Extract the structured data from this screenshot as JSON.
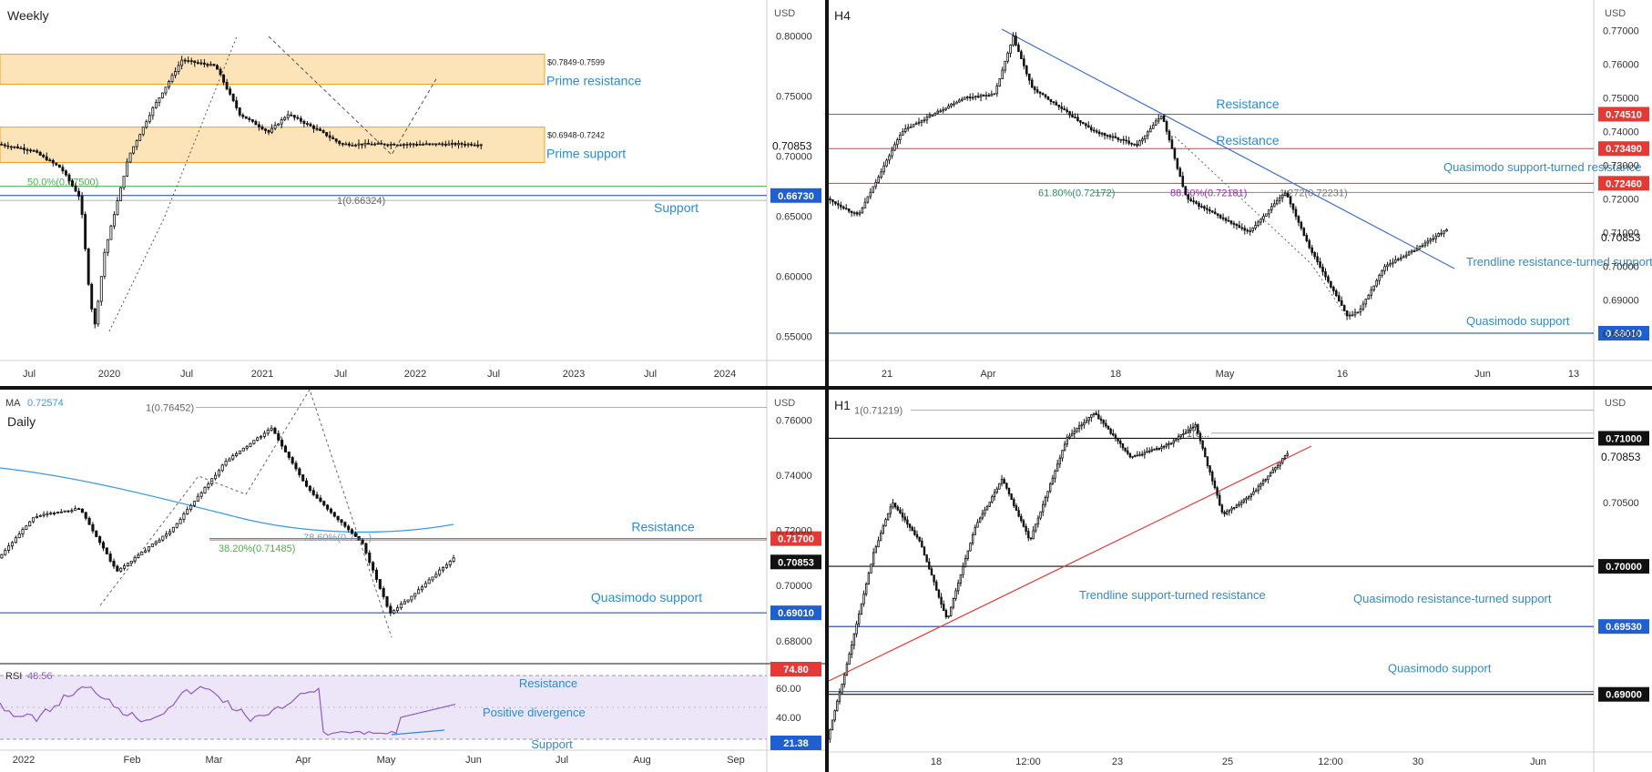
{
  "colors": {
    "blue_label": "#2e8bd0",
    "green_label": "#4caf50",
    "purple_label": "#9c27b0",
    "red": "#e53935",
    "black": "#111111",
    "zone_fill": "#fde3b8",
    "zone_stroke": "#f0a020",
    "ma_line": "#3b9be0",
    "rsi_line": "#8e5ac8",
    "rsi_band": "#ede6f8"
  },
  "chart_data": [
    {
      "id": "weekly",
      "type": "candlestick",
      "title": "Weekly",
      "currency": "USD",
      "price_axis": {
        "ticks": [
          "0.80000",
          "0.75000",
          "0.70000",
          "0.65000",
          "0.60000",
          "0.55000"
        ],
        "last_price": "0.70853"
      },
      "time_axis": [
        "Jul",
        "2020",
        "Jul",
        "2021",
        "Jul",
        "2022",
        "Jul",
        "2023",
        "Jul",
        "2024"
      ],
      "zones": [
        {
          "label": "0.7849-0.7599",
          "top": 0.7849,
          "bottom": 0.7599,
          "caption": "Prime resistance"
        },
        {
          "label": "0.6948-0.7242",
          "top": 0.7242,
          "bottom": 0.6948,
          "caption": "Prime support"
        }
      ],
      "lines": [
        {
          "label": "50.0%(0.67500)",
          "value": 0.675
        },
        {
          "label": "1(0.66324)",
          "value": 0.66324
        },
        {
          "label": "0.66730",
          "value": 0.6673,
          "caption": "Support"
        }
      ],
      "y_range": [
        0.53,
        0.83
      ]
    },
    {
      "id": "h4",
      "type": "candlestick",
      "title": "H4",
      "currency": "USD",
      "price_axis": {
        "ticks": [
          "0.77000",
          "0.76000",
          "0.75000",
          "0.74000",
          "0.73000",
          "0.72000",
          "0.71000",
          "0.70000",
          "0.69000",
          "0.68000"
        ],
        "last_price": "0.70853"
      },
      "time_axis": [
        "21",
        "Apr",
        "18",
        "May",
        "16",
        "Jun",
        "13"
      ],
      "lines": [
        {
          "label": "0.74510",
          "value": 0.7451,
          "caption": "Resistance"
        },
        {
          "label": "0.73490",
          "value": 0.7349,
          "caption": "Resistance"
        },
        {
          "label": "0.72460",
          "value": 0.7246,
          "caption": "Quasimodo support-turned resistance"
        },
        {
          "label": "0.68010",
          "value": 0.6801,
          "caption": "Quasimodo support"
        }
      ],
      "fibs": [
        {
          "label": "61.80%(0.72172)",
          "value": 0.72172
        },
        {
          "label": "88.60%(0.72181)",
          "value": 0.72181
        },
        {
          "label": "1.272(0.72231)",
          "value": 0.72231
        }
      ],
      "trendline_caption": "Trendline resistance-turned support",
      "y_range": [
        0.672,
        0.779
      ]
    },
    {
      "id": "daily",
      "type": "candlestick",
      "title": "Daily",
      "currency": "USD",
      "ma": {
        "label": "MA",
        "value": "0.72574"
      },
      "price_axis": {
        "ticks": [
          "0.76000",
          "0.74000",
          "0.72000",
          "0.70000",
          "0.68000"
        ],
        "last_price": "0.70853"
      },
      "time_axis": [
        "2022",
        "Feb",
        "Mar",
        "Apr",
        "May",
        "Jun",
        "Jul",
        "Aug",
        "Sep"
      ],
      "lines": [
        {
          "label": "0.71700",
          "value": 0.717,
          "caption": "Resistance"
        },
        {
          "label": "0.69010",
          "value": 0.6901,
          "caption": "Quasimodo support"
        }
      ],
      "fibs": [
        {
          "label": "1(0.76452)",
          "value": 0.76452
        },
        {
          "label": "38.20%(0.71485)",
          "value": 0.71485
        },
        {
          "label": "78.60%(0.71...)",
          "value": 0.7165
        }
      ],
      "rsi": {
        "label": "RSI",
        "value": "48.56",
        "ticks": [
          "60.00",
          "40.00"
        ],
        "upper_label": "74.80",
        "lower_label": "21.38",
        "captions": {
          "resistance": "Resistance",
          "divergence": "Positive divergence",
          "support": "Support"
        }
      },
      "y_range": [
        0.672,
        0.771
      ]
    },
    {
      "id": "h1",
      "type": "candlestick",
      "title": "H1",
      "currency": "USD",
      "price_axis": {
        "ticks": [
          "0.70500"
        ],
        "last_price": "0.70853"
      },
      "time_axis": [
        "18",
        "12:00",
        "23",
        "25",
        "12:00",
        "30",
        "Jun"
      ],
      "lines": [
        {
          "label": "0.71000",
          "value": 0.71
        },
        {
          "label": "0.70000",
          "value": 0.7
        },
        {
          "label": "0.69530",
          "value": 0.6953,
          "caption": "Quasimodo resistance-turned support"
        },
        {
          "label": "0.69000",
          "value": 0.69,
          "caption": "Quasimodo support"
        }
      ],
      "fibs": [
        {
          "label": "1(0.71219)",
          "value": 0.71219
        },
        {
          "label": "1(0...",
          "value": 0.7104
        }
      ],
      "trendline_caption": "Trendline support-turned resistance",
      "y_range": [
        0.6855,
        0.7138
      ]
    }
  ]
}
